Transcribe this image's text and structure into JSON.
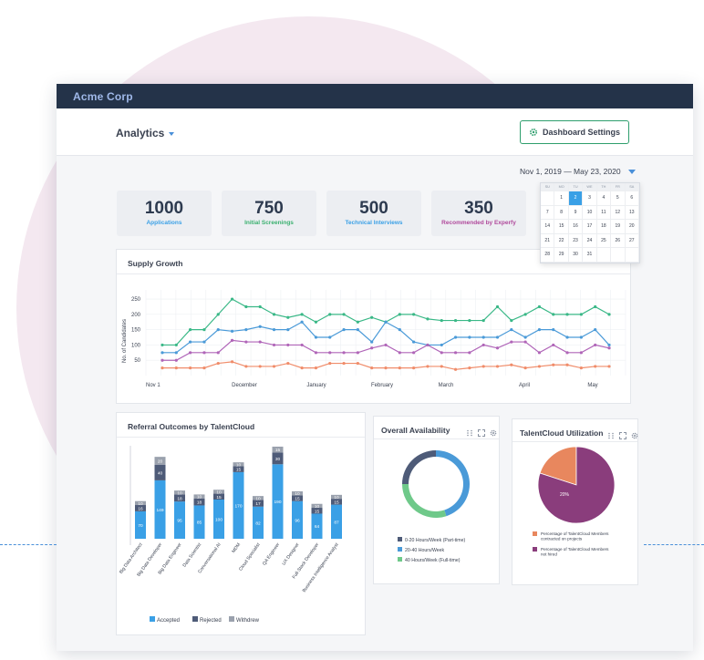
{
  "window": {
    "title": "Acme Corp"
  },
  "header": {
    "section": "Analytics",
    "settings_label": "Dashboard Settings"
  },
  "daterange": {
    "label": "Nov 1, 2019 — May 23, 2020"
  },
  "calendar": {
    "days_of_week": [
      "SU",
      "MO",
      "TU",
      "WE",
      "TH",
      "FR",
      "SA"
    ],
    "weeks": [
      [
        "",
        "1",
        "2",
        "3",
        "4",
        "5",
        "6"
      ],
      [
        "7",
        "8",
        "9",
        "10",
        "11",
        "12",
        "13"
      ],
      [
        "14",
        "15",
        "16",
        "17",
        "18",
        "19",
        "20"
      ],
      [
        "21",
        "22",
        "23",
        "24",
        "25",
        "26",
        "27"
      ],
      [
        "28",
        "29",
        "30",
        "31",
        "",
        "",
        ""
      ]
    ],
    "selected": "2"
  },
  "stats": [
    {
      "value": "1000",
      "label": "Applications",
      "color": "#3aa0e6"
    },
    {
      "value": "750",
      "label": "Initial Screenings",
      "color": "#3ab06f"
    },
    {
      "value": "500",
      "label": "Technical Interviews",
      "color": "#3aa0e6"
    },
    {
      "value": "350",
      "label": "Recommended by Experfy",
      "color": "#b04a9c"
    }
  ],
  "supply": {
    "title": "Supply Growth",
    "ylabel": "No. of Candidates",
    "yticks": [
      "250",
      "200",
      "150",
      "100",
      "50"
    ],
    "xlabels": [
      "Nov 1",
      "December",
      "January",
      "February",
      "March",
      "April",
      "May"
    ]
  },
  "referral": {
    "title": "Referral Outcomes by TalentCloud",
    "legend": [
      "Accepted",
      "Rejected",
      "Withdrew"
    ]
  },
  "availability": {
    "title": "Overall Availability",
    "legend": [
      "0-20 Hours/Week (Part-time)",
      "20-40 Hours/Week",
      "40 Hours/Week (Full-time)"
    ]
  },
  "utilization": {
    "title": "TalentCloud Utilization",
    "slice_labels": [
      "20%",
      "80%"
    ],
    "legend": [
      "Percentage of TalentCloud Members contracted on projects",
      "Percentage of TalentCloud Members not hired"
    ]
  },
  "chart_data": [
    {
      "type": "line",
      "title": "Supply Growth",
      "ylabel": "No. of Candidates",
      "ylim": [
        0,
        280
      ],
      "series": [
        {
          "color": "#3ab887",
          "values": [
            100,
            100,
            150,
            150,
            200,
            250,
            225,
            225,
            200,
            190,
            200,
            175,
            200,
            200,
            175,
            190,
            175,
            200,
            200,
            185,
            180,
            180,
            180,
            180,
            225,
            180,
            200,
            225,
            200,
            200,
            200,
            225,
            200
          ]
        },
        {
          "color": "#4a9ad8",
          "values": [
            75,
            75,
            110,
            110,
            150,
            145,
            150,
            160,
            150,
            150,
            175,
            125,
            125,
            150,
            150,
            110,
            175,
            150,
            110,
            100,
            100,
            125,
            125,
            125,
            125,
            150,
            125,
            150,
            150,
            125,
            125,
            150,
            100
          ]
        },
        {
          "color": "#b065b8",
          "values": [
            50,
            50,
            75,
            75,
            75,
            115,
            110,
            110,
            100,
            100,
            100,
            75,
            75,
            75,
            75,
            90,
            100,
            75,
            75,
            100,
            75,
            75,
            75,
            100,
            90,
            110,
            110,
            75,
            100,
            75,
            75,
            100,
            90
          ]
        },
        {
          "color": "#f08c6a",
          "values": [
            25,
            25,
            25,
            25,
            40,
            45,
            30,
            30,
            30,
            40,
            25,
            25,
            40,
            40,
            40,
            25,
            25,
            25,
            25,
            30,
            30,
            20,
            25,
            30,
            30,
            35,
            25,
            30,
            35,
            35,
            25,
            30,
            30
          ]
        }
      ]
    },
    {
      "type": "bar",
      "title": "Referral Outcomes by TalentCloud",
      "categories": [
        "Big Data Architect",
        "Big Data Developer",
        "Big Data Engineer",
        "Data Scientist",
        "Conversational AI",
        "MDM",
        "Cloud Specialist",
        "QA Engineer",
        "UX Designer",
        "Full-Stack Developer",
        "Business Intelligence Analyst"
      ],
      "series": [
        {
          "name": "Accepted",
          "color": "#3aa0e6",
          "values": [
            70,
            149,
            95,
            85,
            100,
            170,
            82,
            190,
            96,
            64,
            87
          ]
        },
        {
          "name": "Rejected",
          "color": "#4e5b78",
          "values": [
            16,
            40,
            18,
            18,
            15,
            15,
            17,
            30,
            15,
            15,
            15
          ]
        },
        {
          "name": "Withdrew",
          "color": "#9aa1ad",
          "values": [
            10,
            20,
            10,
            10,
            10,
            10,
            10,
            15,
            10,
            10,
            10
          ]
        }
      ]
    },
    {
      "type": "pie",
      "title": "Overall Availability",
      "categories": [
        "0-20 Hours/Week (Part-time)",
        "20-40 Hours/Week",
        "40 Hours/Week (Full-time)"
      ],
      "values": [
        25,
        45,
        30
      ],
      "colors": [
        "#4e5b78",
        "#4a9ad8",
        "#6fc98a"
      ]
    },
    {
      "type": "pie",
      "title": "TalentCloud Utilization",
      "categories": [
        "Percentage of TalentCloud Members contracted on projects",
        "Percentage of TalentCloud Members not hired"
      ],
      "values": [
        20,
        80
      ],
      "colors": [
        "#e8875e",
        "#8a3d7c"
      ]
    }
  ]
}
